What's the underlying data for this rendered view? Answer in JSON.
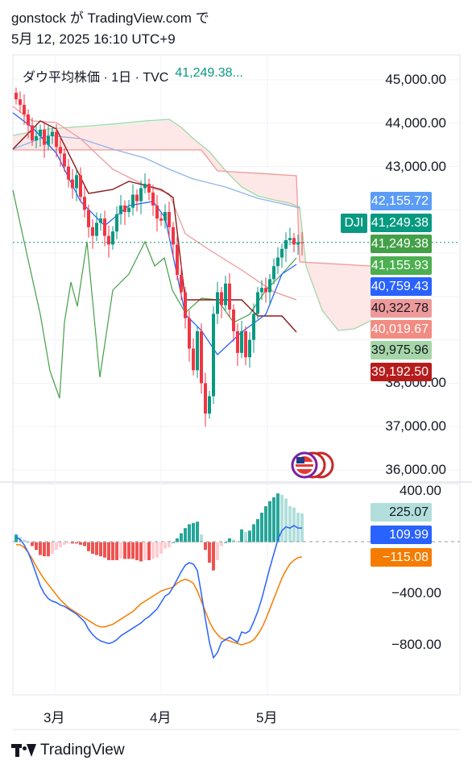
{
  "header": {
    "line1": "gonstock が TradingView.com で",
    "line2": "5月 12, 2025 16:10 UTC+9"
  },
  "legend": {
    "symbol_desc": "ダウ平均株価 · 1日 · TVC",
    "last_value": "41,249.38..."
  },
  "price_axis": {
    "ticks": [
      "45,000.00",
      "44,000.00",
      "43,000.00",
      "38,000.00",
      "37,000.00",
      "36,000.00"
    ]
  },
  "price_labels": [
    {
      "text": "42,155.72",
      "bg": "#5b9cf6",
      "fg": "#ffffff"
    },
    {
      "text": "41,249.38",
      "bg": "#089981",
      "fg": "#ffffff"
    },
    {
      "text": "41,249.38",
      "bg": "#43a047",
      "fg": "#ffffff"
    },
    {
      "text": "41,155.93",
      "bg": "#4caf50",
      "fg": "#ffffff"
    },
    {
      "text": "40,759.43",
      "bg": "#2962ff",
      "fg": "#ffffff"
    },
    {
      "text": "40,322.78",
      "bg": "#ef9a9a",
      "fg": "#131722"
    },
    {
      "text": "40,019.67",
      "bg": "#f28b82",
      "fg": "#ffffff"
    },
    {
      "text": "39,975.96",
      "bg": "#a5d6a7",
      "fg": "#131722"
    },
    {
      "text": "39,192.50",
      "bg": "#b71c1c",
      "fg": "#ffffff"
    }
  ],
  "symbol_tag": "DJI",
  "macd_axis": {
    "ticks": [
      "400.00",
      "−400.00",
      "−800.00"
    ]
  },
  "macd_labels": [
    {
      "text": "225.07",
      "bg": "#b2dfdb",
      "fg": "#131722"
    },
    {
      "text": "109.99",
      "bg": "#2962ff",
      "fg": "#ffffff"
    },
    {
      "text": "−115.08",
      "bg": "#f57c00",
      "fg": "#ffffff"
    }
  ],
  "time_axis": {
    "ticks": [
      "3月",
      "4月",
      "5月"
    ]
  },
  "footer": {
    "brand": "TradingView"
  },
  "colors": {
    "up": "#089981",
    "down": "#f23645",
    "grid": "#f0f3fa"
  },
  "chart_data": {
    "type": "candlestick",
    "title": "ダウ平均株価 · 1日 · TVC",
    "ylim": [
      35900,
      45300
    ],
    "last_close": 41249.38,
    "series": [
      {
        "name": "price",
        "close": [
          44550,
          44420,
          44200,
          43950,
          43600,
          43700,
          43850,
          43500,
          43700,
          43800,
          43450,
          43300,
          43000,
          42700,
          42500,
          42800,
          42300,
          42000,
          41600,
          41400,
          41700,
          41800,
          41400,
          41200,
          41500,
          41900,
          42100,
          41950,
          42050,
          42350,
          42200,
          42500,
          42600,
          42400,
          42100,
          41800,
          41750,
          41950,
          41600,
          41200,
          40500,
          40100,
          39500,
          38800,
          38300,
          39200,
          38000,
          37300,
          37700,
          39600,
          40100,
          39800,
          40300,
          39700,
          39200,
          38700,
          39200,
          38600,
          39000,
          39600,
          40100,
          40200,
          40100,
          40400,
          40700,
          40900,
          41100,
          41300,
          41350,
          41200,
          41250,
          41249
        ]
      },
      {
        "name": "macd",
        "values": [
          40,
          20,
          -20,
          -80,
          -160,
          -250,
          -340,
          -400,
          -440,
          -460,
          -470,
          -490,
          -500,
          -520,
          -540,
          -560,
          -590,
          -620,
          -680,
          -720,
          -750,
          -770,
          -780,
          -790,
          -780,
          -760,
          -730,
          -710,
          -690,
          -670,
          -650,
          -630,
          -600,
          -580,
          -550,
          -520,
          -470,
          -420,
          -400,
          -350,
          -290,
          -230,
          -180,
          -160,
          -170,
          -220,
          -400,
          -600,
          -780,
          -900,
          -860,
          -780,
          -760,
          -740,
          -760,
          -780,
          -700,
          -710,
          -690,
          -620,
          -540,
          -440,
          -320,
          -200,
          -90,
          20,
          90,
          120,
          110,
          130,
          110,
          110
        ]
      },
      {
        "name": "signal",
        "values": [
          -20,
          -20,
          -40,
          -80,
          -130,
          -190,
          -240,
          -290,
          -330,
          -370,
          -410,
          -450,
          -480,
          -510,
          -530,
          -550,
          -570,
          -590,
          -610,
          -630,
          -650,
          -660,
          -660,
          -650,
          -640,
          -620,
          -600,
          -580,
          -560,
          -540,
          -510,
          -480,
          -460,
          -440,
          -420,
          -400,
          -380,
          -370,
          -360,
          -350,
          -320,
          -300,
          -290,
          -300,
          -320,
          -380,
          -460,
          -540,
          -620,
          -680,
          -720,
          -750,
          -760,
          -770,
          -780,
          -790,
          -800,
          -790,
          -780,
          -760,
          -720,
          -670,
          -600,
          -520,
          -440,
          -360,
          -280,
          -220,
          -170,
          -140,
          -120,
          -115
        ]
      }
    ],
    "x_ticks": [
      "3月",
      "4月",
      "5月"
    ]
  }
}
